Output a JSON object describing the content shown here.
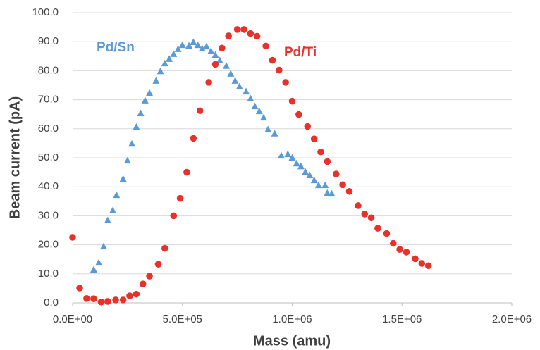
{
  "chart_data": {
    "type": "scatter",
    "xlabel": "Mass (amu)",
    "ylabel": "Beam current (pA)",
    "xlim": [
      0,
      2000000
    ],
    "xticks": [
      {
        "value": 0,
        "label": "0.0E+00"
      },
      {
        "value": 500000,
        "label": "5.0E+05"
      },
      {
        "value": 1000000,
        "label": "1.0E+06"
      },
      {
        "value": 1500000,
        "label": "1.5E+06"
      },
      {
        "value": 2000000,
        "label": "2.0E+06"
      }
    ],
    "ylim": [
      0,
      100
    ],
    "yticks": [
      {
        "value": 0,
        "label": "0.0"
      },
      {
        "value": 10,
        "label": "10.0"
      },
      {
        "value": 20,
        "label": "20.0"
      },
      {
        "value": 30,
        "label": "30.0"
      },
      {
        "value": 40,
        "label": "40.0"
      },
      {
        "value": 50,
        "label": "50.0"
      },
      {
        "value": 60,
        "label": "60.0"
      },
      {
        "value": 70,
        "label": "70.0"
      },
      {
        "value": 80,
        "label": "80.0"
      },
      {
        "value": 90,
        "label": "90.0"
      },
      {
        "value": 100,
        "label": "100.0"
      }
    ],
    "grid": true,
    "series": [
      {
        "name": "Pd/Sn",
        "color": "#5b9bd5",
        "marker": "triangle",
        "x": [
          96000,
          119000,
          141000,
          160000,
          183000,
          200000,
          230000,
          250000,
          270000,
          290000,
          310000,
          330000,
          350000,
          380000,
          400000,
          420000,
          440000,
          460000,
          480000,
          500000,
          530000,
          550000,
          570000,
          590000,
          610000,
          630000,
          650000,
          670000,
          700000,
          720000,
          740000,
          760000,
          790000,
          810000,
          830000,
          850000,
          870000,
          890000,
          920000,
          950000,
          980000,
          1000000,
          1020000,
          1040000,
          1060000,
          1080000,
          1100000,
          1120000,
          1150000,
          1160000,
          1180000
        ],
        "values": [
          11.4,
          13.8,
          19.4,
          28.4,
          31.8,
          37.1,
          42.7,
          49,
          54.8,
          60.6,
          65.3,
          69.7,
          72.3,
          76.5,
          79.8,
          82.5,
          84,
          85.7,
          87.4,
          88.8,
          88.6,
          89.8,
          88.8,
          87.6,
          88.3,
          86.7,
          85.4,
          83.5,
          81.6,
          78.9,
          76.5,
          74.5,
          72.8,
          70.4,
          67.7,
          66,
          63.8,
          59.7,
          58.3,
          50.7,
          51.2,
          50,
          48,
          47,
          45.1,
          43.9,
          42.2,
          40.5,
          40.5,
          37.8,
          37.6
        ]
      },
      {
        "name": "Pd/Ti",
        "color": "#e8312a",
        "marker": "circle",
        "x": [
          0,
          32000,
          64000,
          96000,
          130000,
          160000,
          196000,
          230000,
          260000,
          290000,
          320000,
          350000,
          390000,
          420000,
          460000,
          490000,
          520000,
          550000,
          580000,
          620000,
          650000,
          680000,
          710000,
          750000,
          780000,
          810000,
          840000,
          880000,
          910000,
          940000,
          970000,
          1000000,
          1030000,
          1070000,
          1100000,
          1130000,
          1160000,
          1200000,
          1230000,
          1260000,
          1300000,
          1330000,
          1360000,
          1390000,
          1430000,
          1460000,
          1490000,
          1520000,
          1560000,
          1590000,
          1620000
        ],
        "values": [
          22.6,
          5.1,
          1.5,
          1.4,
          0.3,
          0.5,
          1.0,
          1.0,
          2.4,
          3.0,
          6.5,
          9.2,
          13.3,
          18.8,
          30,
          36,
          45,
          56.7,
          66.2,
          76,
          82.2,
          87.8,
          92,
          94.2,
          94.2,
          92.8,
          91.9,
          88.5,
          83.6,
          80.2,
          76,
          69.5,
          64.9,
          60.8,
          56.5,
          52,
          48.7,
          44.4,
          40.7,
          38.4,
          33.5,
          30.6,
          29.3,
          25.7,
          23.9,
          20.5,
          18.4,
          17.5,
          15.2,
          13.6,
          12.8
        ]
      }
    ]
  }
}
